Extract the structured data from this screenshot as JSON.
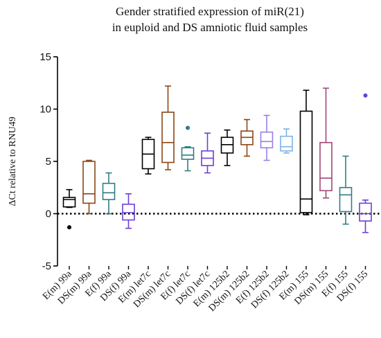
{
  "chart_data": {
    "type": "box",
    "title": [
      "Gender stratified expression of miR(21)",
      "in euploid and DS amniotic fluid samples"
    ],
    "ylabel": "ΔCt relative to RNU49",
    "xlabel": "",
    "ylim": [
      -5,
      15
    ],
    "yticks": [
      -5,
      0,
      5,
      10,
      15
    ],
    "reference_line": {
      "y": 0,
      "style": "dotted"
    },
    "legend": "none",
    "categories": [
      "E(m) 99a",
      "DS(m) 99a",
      "E(f) 99a",
      "DS(f) 99a",
      "E(m) let7c",
      "DS(m) let7c",
      "E(f) let7c",
      "DS(f) let7c",
      "E(m) 125b2",
      "DS(m) 125b2",
      "E(f) 125b2",
      "DS(f) 125b2",
      "E(m) 155",
      "DS(m) 155",
      "E(f) 155",
      "DS(f) 155"
    ],
    "boxes": [
      {
        "label": "E(m) 99a",
        "min": 0.6,
        "q1": 0.65,
        "median": 1.35,
        "q3": 1.55,
        "max": 2.3,
        "outliers": [
          -1.3
        ],
        "color": "#000000"
      },
      {
        "label": "DS(m) 99a",
        "min": 0.0,
        "q1": 1.0,
        "median": 1.9,
        "q3": 5.0,
        "max": 5.1,
        "outliers": [],
        "color": "#8b4513"
      },
      {
        "label": "E(f) 99a",
        "min": 0.0,
        "q1": 1.35,
        "median": 2.0,
        "q3": 2.9,
        "max": 3.9,
        "outliers": [],
        "color": "#2e7d86"
      },
      {
        "label": "DS(f) 99a",
        "min": -1.4,
        "q1": -0.6,
        "median": 0.1,
        "q3": 0.9,
        "max": 1.9,
        "outliers": [],
        "color": "#6b3fd6"
      },
      {
        "label": "E(m) let7c",
        "min": 3.8,
        "q1": 4.3,
        "median": 5.7,
        "q3": 7.1,
        "max": 7.3,
        "outliers": [],
        "color": "#000000"
      },
      {
        "label": "DS(m) let7c",
        "min": 4.2,
        "q1": 4.9,
        "median": 6.8,
        "q3": 9.7,
        "max": 12.2,
        "outliers": [],
        "color": "#8b4513"
      },
      {
        "label": "E(f) let7c",
        "min": 4.1,
        "q1": 5.2,
        "median": 5.6,
        "q3": 6.3,
        "max": 6.4,
        "outliers": [
          8.2
        ],
        "color": "#2e7d86"
      },
      {
        "label": "DS(f) let7c",
        "min": 3.9,
        "q1": 4.6,
        "median": 5.3,
        "q3": 6.0,
        "max": 7.7,
        "outliers": [],
        "color": "#6b3fd6"
      },
      {
        "label": "E(m) 125b2",
        "min": 4.6,
        "q1": 5.8,
        "median": 6.6,
        "q3": 7.3,
        "max": 8.0,
        "outliers": [],
        "color": "#000000"
      },
      {
        "label": "DS(m) 125b2",
        "min": 5.5,
        "q1": 6.6,
        "median": 7.3,
        "q3": 7.9,
        "max": 9.0,
        "outliers": [],
        "color": "#8b4513"
      },
      {
        "label": "E(f) 125b2",
        "min": 5.1,
        "q1": 6.3,
        "median": 6.9,
        "q3": 7.8,
        "max": 9.4,
        "outliers": [],
        "color": "#9b7fe6"
      },
      {
        "label": "DS(f) 125b2",
        "min": 5.8,
        "q1": 6.0,
        "median": 6.4,
        "q3": 7.4,
        "max": 8.1,
        "outliers": [],
        "color": "#7fb2e6"
      },
      {
        "label": "E(m) 155",
        "min": -0.1,
        "q1": 0.1,
        "median": 1.4,
        "q3": 9.8,
        "max": 11.8,
        "outliers": [],
        "color": "#000000"
      },
      {
        "label": "DS(m) 155",
        "min": 1.5,
        "q1": 2.2,
        "median": 3.4,
        "q3": 6.8,
        "max": 12.0,
        "outliers": [],
        "color": "#a0467a"
      },
      {
        "label": "E(f) 155",
        "min": -1.0,
        "q1": 0.2,
        "median": 1.8,
        "q3": 2.5,
        "max": 5.5,
        "outliers": [],
        "color": "#2e7d86"
      },
      {
        "label": "DS(f) 155",
        "min": -1.8,
        "q1": -0.7,
        "median": 0.0,
        "q3": 1.0,
        "max": 1.3,
        "outliers": [
          11.3
        ],
        "color": "#6b3fd6"
      }
    ]
  }
}
